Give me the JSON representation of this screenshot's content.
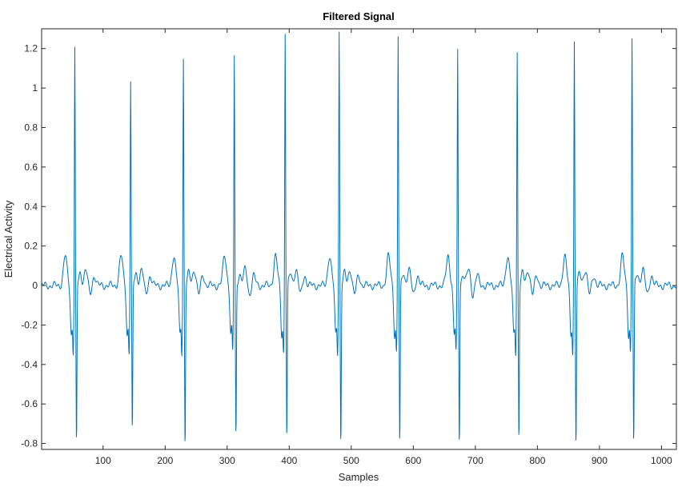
{
  "figure": {
    "title": "Filtered Signal",
    "xlabel": "Samples",
    "ylabel": "Electrical Activity"
  },
  "colors": {
    "line": "#0072bd",
    "axes": "#262626",
    "background": "#ffffff"
  },
  "chart_data": {
    "type": "line",
    "title": "Filtered Signal",
    "xlabel": "Samples",
    "ylabel": "Electrical Activity",
    "xlim": [
      1,
      1024
    ],
    "ylim": [
      -0.83,
      1.3
    ],
    "xticks": [
      100,
      200,
      300,
      400,
      500,
      600,
      700,
      800,
      900,
      1000
    ],
    "yticks": [
      -0.8,
      -0.6,
      -0.4,
      -0.2,
      0,
      0.2,
      0.4,
      0.6,
      0.8,
      1,
      1.2
    ],
    "ytick_labels": [
      "-0.8",
      "-0.6",
      "-0.4",
      "-0.2",
      "0",
      "0.2",
      "0.4",
      "0.6",
      "0.8",
      "1",
      "1.2"
    ],
    "grid": false,
    "legend": "none",
    "beats": [
      {
        "x": 55,
        "peak": 1.21,
        "trough": -0.82
      },
      {
        "x": 145,
        "peak": 1.04,
        "trough": -0.76
      },
      {
        "x": 230,
        "peak": 1.16,
        "trough": -0.82
      },
      {
        "x": 312,
        "peak": 1.17,
        "trough": -0.78
      },
      {
        "x": 394,
        "peak": 1.29,
        "trough": -0.78
      },
      {
        "x": 481,
        "peak": 1.3,
        "trough": -0.81
      },
      {
        "x": 576,
        "peak": 1.27,
        "trough": -0.82
      },
      {
        "x": 672,
        "peak": 1.19,
        "trough": -0.8
      },
      {
        "x": 768,
        "peak": 1.19,
        "trough": -0.78
      },
      {
        "x": 860,
        "peak": 1.24,
        "trough": -0.81
      },
      {
        "x": 953,
        "peak": 1.26,
        "trough": -0.82
      }
    ]
  }
}
